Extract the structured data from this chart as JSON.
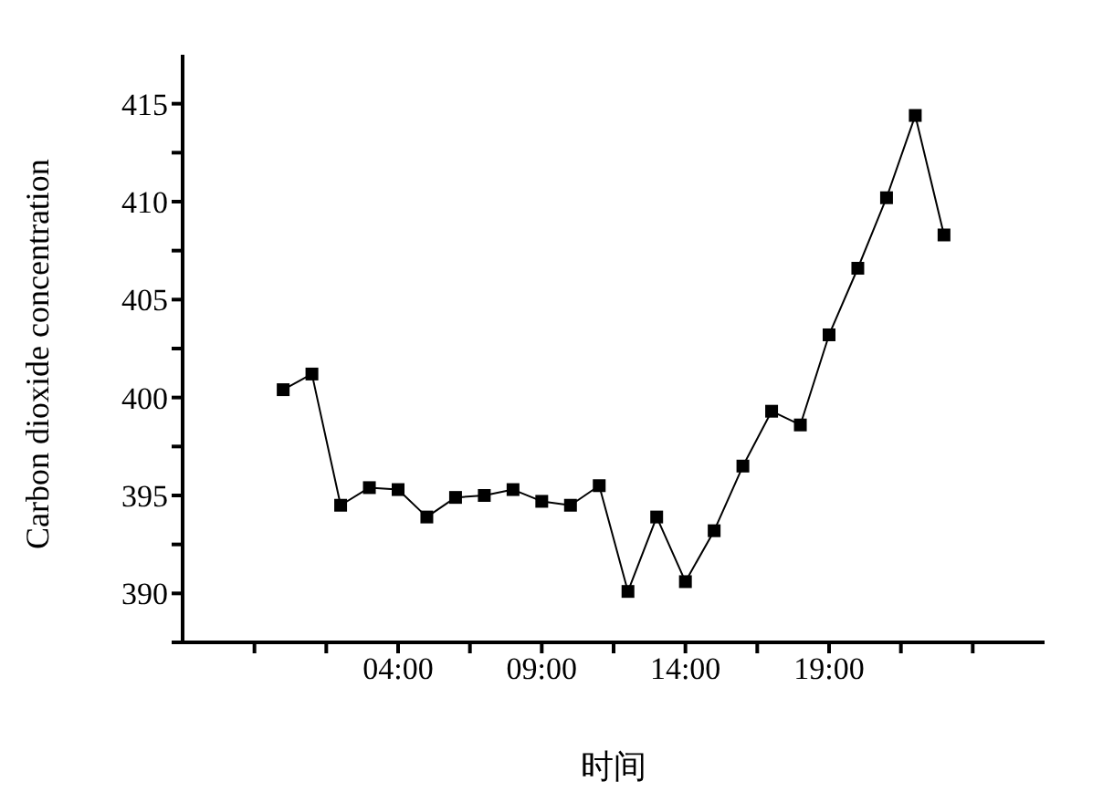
{
  "chart_data": {
    "type": "line",
    "xlabel": "时间",
    "ylabel": "Carbon dioxide concentration",
    "x": [
      0,
      1,
      2,
      3,
      4,
      5,
      6,
      7,
      8,
      9,
      10,
      11,
      12,
      13,
      14,
      15,
      16,
      17,
      18,
      19,
      20,
      21,
      22,
      23
    ],
    "series": [
      {
        "color": "#000000",
        "values": [
          400.4,
          401.2,
          394.5,
          395.4,
          395.3,
          393.9,
          394.9,
          395.0,
          395.3,
          394.7,
          394.5,
          395.5,
          390.1,
          393.9,
          390.6,
          393.2,
          396.5,
          399.3,
          398.6,
          403.2,
          406.6,
          410.2,
          414.4,
          408.3
        ]
      }
    ],
    "xlim": [
      -3.5,
      26.5
    ],
    "xticks": [
      {
        "value": -1,
        "label": null
      },
      {
        "value": 1.5,
        "label": null
      },
      {
        "value": 4,
        "label": "04:00"
      },
      {
        "value": 6.5,
        "label": null
      },
      {
        "value": 9,
        "label": "09:00"
      },
      {
        "value": 11.5,
        "label": null
      },
      {
        "value": 14,
        "label": "14:00"
      },
      {
        "value": 16.5,
        "label": null
      },
      {
        "value": 19,
        "label": "19:00"
      },
      {
        "value": 21.5,
        "label": null
      },
      {
        "value": 24,
        "label": null
      }
    ],
    "ylim": [
      387.5,
      417.5
    ],
    "yticks": [
      {
        "value": 387.5,
        "label": null
      },
      390,
      {
        "value": 392.5,
        "label": null
      },
      395,
      {
        "value": 397.5,
        "label": null
      },
      400,
      {
        "value": 402.5,
        "label": null
      },
      405,
      {
        "value": 407.5,
        "label": null
      },
      410,
      {
        "value": 412.5,
        "label": null
      },
      415
    ],
    "marker": "square",
    "line_style": "solid",
    "grid": false,
    "legend": false
  }
}
